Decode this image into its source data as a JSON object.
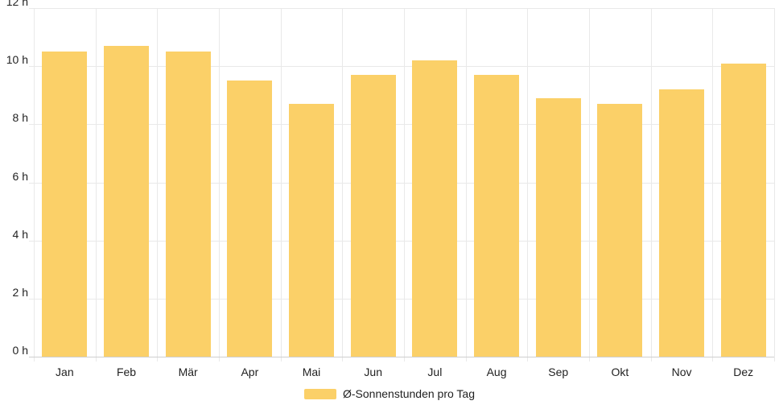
{
  "chart_data": {
    "type": "bar",
    "title": "",
    "categories": [
      "Jan",
      "Feb",
      "Mär",
      "Apr",
      "Mai",
      "Jun",
      "Jul",
      "Aug",
      "Sep",
      "Okt",
      "Nov",
      "Dez"
    ],
    "series": [
      {
        "name": "Ø-Sonnenstunden pro Tag",
        "values": [
          10.5,
          10.7,
          10.5,
          9.5,
          8.7,
          9.7,
          10.2,
          9.7,
          8.9,
          8.7,
          9.2,
          10.1
        ]
      }
    ],
    "xlabel": "",
    "ylabel": "",
    "ylim": [
      0,
      12
    ],
    "ytick_step": 2,
    "ytick_labels": [
      "0 h",
      "2 h",
      "4 h",
      "6 h",
      "8 h",
      "10 h",
      "12 h"
    ],
    "grid": "on",
    "legend_position": "bottom-center",
    "colors": {
      "bar": "#fbd068",
      "grid": "#e9e9e9",
      "axis": "#cfcfcf",
      "text": "#222222",
      "background": "#ffffff"
    }
  },
  "legend": {
    "label": "Ø-Sonnenstunden pro Tag"
  }
}
